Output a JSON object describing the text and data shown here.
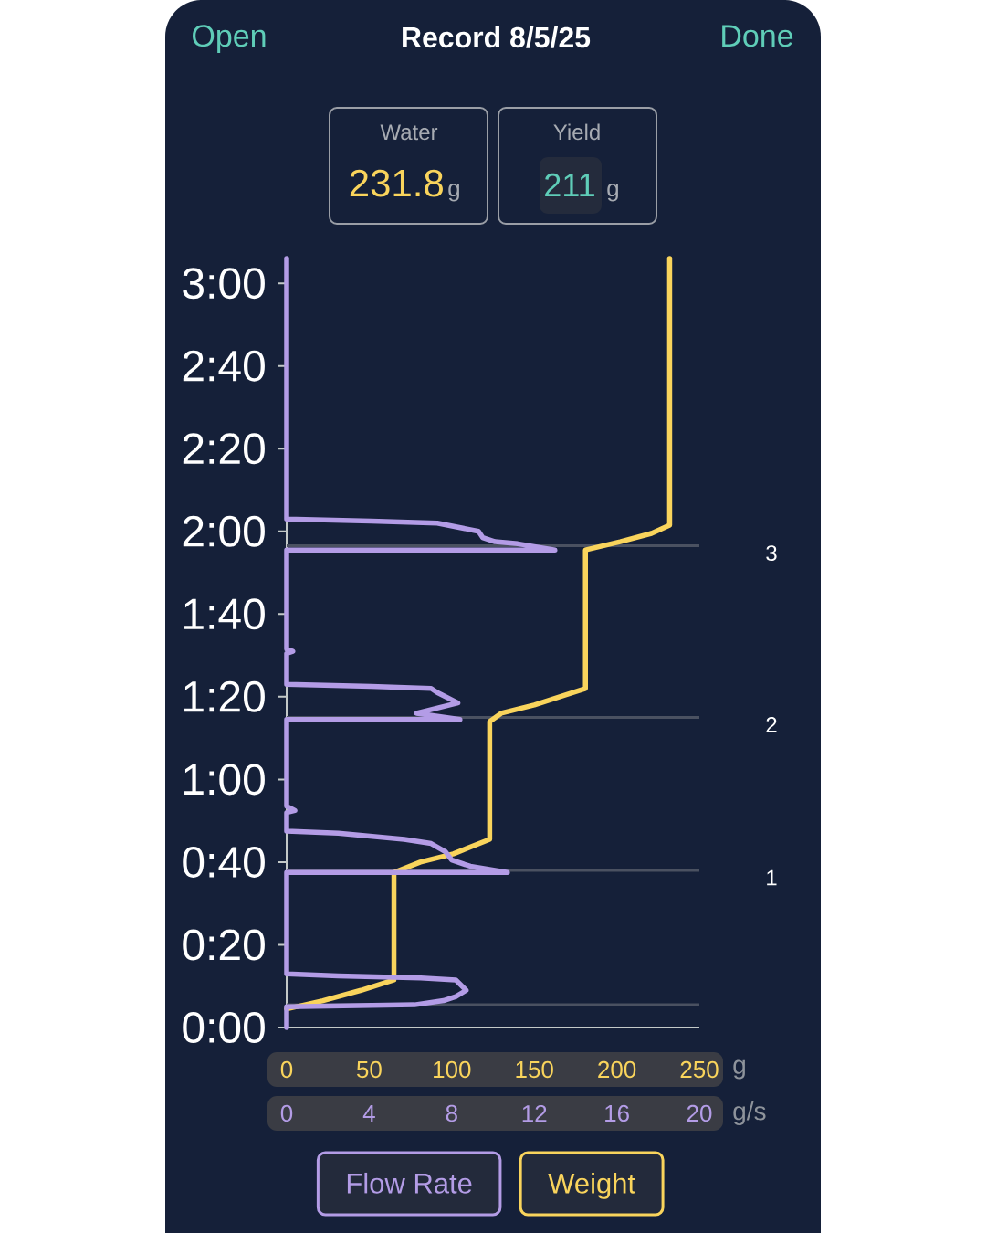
{
  "chart_data": {
    "type": "line",
    "title": "Record 8/5/25",
    "annotations": [
      "Open",
      "Done",
      "Water",
      "231.8",
      "g",
      "Yield",
      "211",
      "g",
      "3",
      "2",
      "1"
    ],
    "xlabel": "g",
    "xlim": [
      0,
      250
    ],
    "xticks": [
      0,
      50,
      100,
      150,
      200,
      250
    ],
    "x2label": "g/s",
    "x2lim": [
      0,
      20
    ],
    "x2ticks": [
      0,
      4,
      8,
      12,
      16,
      20
    ],
    "ylim": [
      0,
      186
    ],
    "yticks": [
      {
        "value": 0,
        "label": "0:00"
      },
      {
        "value": 20,
        "label": "0:20"
      },
      {
        "value": 40,
        "label": "0:40"
      },
      {
        "value": 60,
        "label": "1:00"
      },
      {
        "value": 80,
        "label": "1:20"
      },
      {
        "value": 100,
        "label": "1:40"
      },
      {
        "value": 120,
        "label": "2:00"
      },
      {
        "value": 140,
        "label": "2:20"
      },
      {
        "value": 160,
        "label": "2:40"
      },
      {
        "value": 180,
        "label": "3:00"
      }
    ],
    "legend": "bottom",
    "ref_lines": [
      {
        "axis": "y",
        "value": 5.5,
        "color": "#4a5161"
      },
      {
        "axis": "y",
        "value": 38,
        "color": "#4a5161"
      },
      {
        "axis": "y",
        "value": 75,
        "color": "#4a5161"
      },
      {
        "axis": "y",
        "value": 116.5,
        "color": "#4a5161"
      }
    ],
    "series": [
      {
        "name": "Flow Rate",
        "color": "#b39ce6",
        "axis": "x2",
        "x": [
          0,
          0,
          6.2,
          7.6,
          8.2,
          8.7,
          8.4,
          8.2,
          6.5,
          2.5,
          0,
          0,
          10.7,
          8.9,
          8.0,
          7.7,
          7.0,
          5.7,
          2.5,
          0,
          0,
          0.4,
          0,
          0,
          8.4,
          7.0,
          6.3,
          8.3,
          7.3,
          7.0,
          4.1,
          0,
          0,
          0.3,
          0,
          0,
          13.0,
          11.2,
          10.1,
          9.5,
          9.3,
          7.3,
          4.1,
          0,
          0
        ],
        "values": [
          0,
          5,
          5.5,
          6.5,
          7.5,
          9,
          10.5,
          11.5,
          12,
          12.5,
          13,
          37.5,
          37.5,
          39,
          40.5,
          42.5,
          44.5,
          45.5,
          47,
          47.5,
          52,
          52.5,
          53.5,
          74.5,
          74.5,
          75.5,
          76,
          78.5,
          81,
          82,
          82.5,
          83,
          90.5,
          91,
          91.5,
          115.5,
          115.5,
          117,
          117.5,
          118.5,
          120,
          122,
          122.5,
          123,
          186
        ]
      },
      {
        "name": "Weight",
        "color": "#f9d45c",
        "x": [
          0,
          22,
          45,
          65,
          65,
          81,
          101,
          123,
          123,
          130,
          150,
          181,
          181,
          202,
          221,
          232,
          232
        ],
        "values": [
          4.5,
          6.5,
          9,
          11.5,
          37.5,
          40,
          42,
          45.5,
          74,
          76,
          78,
          82,
          115.5,
          117.5,
          119.5,
          121.5,
          186
        ]
      }
    ]
  }
}
